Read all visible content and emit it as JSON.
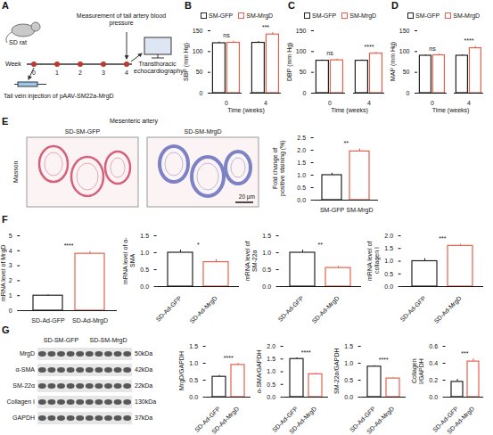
{
  "diagram": {
    "panel": "A",
    "subject": "SD rat",
    "timeline_label": "Week",
    "weeks": [
      0,
      1,
      2,
      3,
      4
    ],
    "measurement": "Measurement of tail artery blood pressure",
    "injection": "Tail vein injection of pAAV-SM22a-MrgD",
    "endpoint": "Transthoracic echocardiography"
  },
  "histology": {
    "panel": "E",
    "title": "Mesenteric artery",
    "stain": "Masson",
    "columns": [
      "SD-SM-GFP",
      "SD-SM-MrgD"
    ],
    "scale_bar": "20 μm"
  },
  "blot": {
    "panel": "G",
    "groups": [
      "SD-SM-GFP",
      "SD-SM-MrgD"
    ],
    "rows": [
      {
        "protein": "MrgD",
        "size": "50kDa"
      },
      {
        "protein": "α-SMA",
        "size": "42kDa"
      },
      {
        "protein": "SM-22α",
        "size": "22kDa"
      },
      {
        "protein": "Collagen I",
        "size": "130kDa"
      },
      {
        "protein": "GAPDH",
        "size": "37kDa"
      }
    ]
  },
  "chart_data": [
    {
      "panel": "B",
      "type": "bar",
      "y_label": "SBP (mm Hg)",
      "x_label": "Time (weeks)",
      "categories": [
        "0",
        "4"
      ],
      "series": [
        {
          "name": "SM-GFP",
          "color": "#222222",
          "values": [
            120,
            121
          ],
          "errors": [
            3,
            3
          ]
        },
        {
          "name": "SM-MrgD",
          "color": "#e8604c",
          "values": [
            121,
            141
          ],
          "errors": [
            4,
            5
          ]
        }
      ],
      "annotations": [
        "ns",
        "***"
      ],
      "ylim": [
        0,
        150
      ],
      "yticks": [
        0,
        50,
        100,
        150
      ],
      "legend": "top"
    },
    {
      "panel": "C",
      "type": "bar",
      "y_label": "DBP (mm Hg)",
      "x_label": "Time (weeks)",
      "categories": [
        "0",
        "4"
      ],
      "series": [
        {
          "name": "SM-GFP",
          "color": "#222222",
          "values": [
            78,
            78
          ],
          "errors": [
            2,
            2
          ]
        },
        {
          "name": "SM-MrgD",
          "color": "#e8604c",
          "values": [
            79,
            95
          ],
          "errors": [
            3,
            4
          ]
        }
      ],
      "annotations": [
        "ns",
        "****"
      ],
      "ylim": [
        0,
        150
      ],
      "yticks": [
        0,
        50,
        100,
        150
      ],
      "legend": "top"
    },
    {
      "panel": "D",
      "type": "bar",
      "y_label": "MAP (mm Hg)",
      "x_label": "Time (weeks)",
      "categories": [
        "0",
        "4"
      ],
      "series": [
        {
          "name": "SM-GFP",
          "color": "#222222",
          "values": [
            90,
            90
          ],
          "errors": [
            2,
            2
          ]
        },
        {
          "name": "SM-MrgD",
          "color": "#e8604c",
          "values": [
            91,
            108
          ],
          "errors": [
            3,
            4
          ]
        }
      ],
      "annotations": [
        "ns",
        "****"
      ],
      "ylim": [
        0,
        150
      ],
      "yticks": [
        0,
        50,
        100,
        150
      ],
      "legend": "top"
    },
    {
      "type": "bar",
      "y_label": "Fold change of positive staining (%)",
      "categories": [
        "SM-GFP",
        "SM-MrgD"
      ],
      "values": [
        1.0,
        1.95
      ],
      "errors": [
        0.08,
        0.1
      ],
      "colors": [
        "#222222",
        "#e8604c"
      ],
      "annotations": [
        "**"
      ],
      "ylim": [
        0,
        2.5
      ],
      "yticks": [
        {
          "value": 0,
          "label": "0.0"
        },
        0.5,
        {
          "value": 1,
          "label": "1.0"
        },
        1.5,
        {
          "value": 2,
          "label": "2.0"
        },
        2.5
      ]
    },
    {
      "panel": "F",
      "type": "bar",
      "y_label": "mRNA level of MrgD",
      "categories": [
        "SD-Ad-GFP",
        "SD-Ad-MrgD"
      ],
      "values": [
        1.0,
        3.8
      ],
      "errors": [
        0.05,
        0.15
      ],
      "colors": [
        "#222222",
        "#e8604c"
      ],
      "annotations": [
        "****"
      ],
      "ylim": [
        0,
        5
      ],
      "yticks": [
        0,
        1,
        2,
        3,
        4,
        5
      ]
    },
    {
      "type": "bar",
      "y_label": "mRNA level of α-SMA",
      "categories": [
        "SD-Ad-GFP",
        "SD-Ad-MrgD"
      ],
      "values": [
        1.0,
        0.72
      ],
      "errors": [
        0.08,
        0.07
      ],
      "colors": [
        "#222222",
        "#e8604c"
      ],
      "annotations": [
        "*"
      ],
      "ylim": [
        0,
        1.5
      ],
      "yticks": [
        {
          "value": 0,
          "label": "0.0"
        },
        0.5,
        {
          "value": 1,
          "label": "1.0"
        },
        1.5
      ]
    },
    {
      "type": "bar",
      "y_label": "mRNA level of SM-22α",
      "categories": [
        "SD-Ad-GFP",
        "SD-Ad-MrgD"
      ],
      "values": [
        1.0,
        0.55
      ],
      "errors": [
        0.08,
        0.05
      ],
      "colors": [
        "#222222",
        "#e8604c"
      ],
      "annotations": [
        "**"
      ],
      "ylim": [
        0,
        1.5
      ],
      "yticks": [
        {
          "value": 0,
          "label": "0.0"
        },
        0.5,
        {
          "value": 1,
          "label": "1.0"
        },
        1.5
      ]
    },
    {
      "type": "bar",
      "y_label": "mRNA level of collagen I",
      "categories": [
        "SD-Ad-GFP",
        "SD-Ad-MrgD"
      ],
      "values": [
        1.0,
        1.6
      ],
      "errors": [
        0.1,
        0.06
      ],
      "colors": [
        "#222222",
        "#e8604c"
      ],
      "annotations": [
        "***"
      ],
      "ylim": [
        0,
        2
      ],
      "yticks": [
        {
          "value": 0,
          "label": "0.0"
        },
        0.5,
        {
          "value": 1,
          "label": "1.0"
        },
        1.5,
        {
          "value": 2,
          "label": "2.0"
        }
      ]
    },
    {
      "type": "bar",
      "y_label": "MrgD/GAPDH",
      "categories": [
        "SD-Ad-GFP",
        "SD-Ad-MrgD"
      ],
      "values": [
        0.6,
        0.95
      ],
      "errors": [
        0.04,
        0.05
      ],
      "colors": [
        "#222222",
        "#e8604c"
      ],
      "annotations": [
        "****"
      ],
      "ylim": [
        0,
        1.5
      ],
      "yticks": [
        {
          "value": 0,
          "label": "0.0"
        },
        0.5,
        {
          "value": 1,
          "label": "1.0"
        },
        1.5
      ]
    },
    {
      "type": "bar",
      "y_label": "α-SMA/GAPDH",
      "categories": [
        "SD-Ad-GFP",
        "SD-Ad-MrgD"
      ],
      "values": [
        1.5,
        0.9
      ],
      "errors": [
        0.05,
        0.03
      ],
      "colors": [
        "#222222",
        "#e8604c"
      ],
      "annotations": [
        "****"
      ],
      "ylim": [
        0,
        2
      ],
      "yticks": [
        {
          "value": 0,
          "label": "0.0"
        },
        0.5,
        {
          "value": 1,
          "label": "1.0"
        },
        1.5,
        {
          "value": 2,
          "label": "2.0"
        }
      ]
    },
    {
      "type": "bar",
      "y_label": "SM-22α/GAPDH",
      "categories": [
        "SD-Ad-GFP",
        "SD-Ad-MrgD"
      ],
      "values": [
        0.9,
        0.55
      ],
      "errors": [
        0.03,
        0.02
      ],
      "colors": [
        "#222222",
        "#e8604c"
      ],
      "annotations": [
        "****"
      ],
      "ylim": [
        0,
        1.5
      ],
      "yticks": [
        {
          "value": 0,
          "label": "0.0"
        },
        0.5,
        {
          "value": 1,
          "label": "1.0"
        },
        1.5
      ]
    },
    {
      "type": "bar",
      "y_label": "Collagen I/GAPDH",
      "categories": [
        "SD-Ad-GFP",
        "SD-Ad-MrgD"
      ],
      "values": [
        0.18,
        0.42
      ],
      "errors": [
        0.03,
        0.03
      ],
      "colors": [
        "#222222",
        "#e8604c"
      ],
      "annotations": [
        "***"
      ],
      "ylim": [
        0,
        0.6
      ],
      "yticks": [
        {
          "value": 0,
          "label": "0.0"
        },
        0.2,
        0.4,
        0.6
      ]
    }
  ]
}
